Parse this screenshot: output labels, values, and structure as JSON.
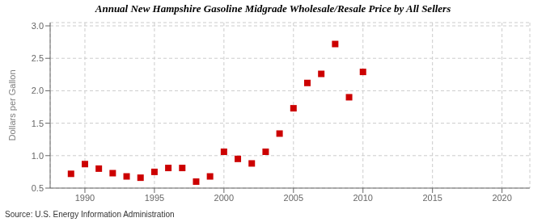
{
  "chart_data": {
    "type": "scatter",
    "title": "Annual New Hampshire Gasoline Midgrade Wholesale/Resale Price by All Sellers",
    "ylabel": "Dollars per Gallon",
    "annotations": [
      "Source: U.S. Energy Information Administration"
    ],
    "x": [
      1989,
      1990,
      1991,
      1992,
      1993,
      1994,
      1995,
      1996,
      1997,
      1998,
      1999,
      2000,
      2001,
      2002,
      2003,
      2004,
      2005,
      2006,
      2007,
      2008,
      2009,
      2010
    ],
    "values": [
      0.72,
      0.87,
      0.8,
      0.73,
      0.68,
      0.66,
      0.75,
      0.81,
      0.81,
      0.6,
      0.68,
      1.06,
      0.95,
      0.88,
      1.06,
      1.34,
      1.73,
      2.12,
      2.26,
      2.72,
      1.9,
      2.29
    ],
    "color": "#cc0000",
    "marker": "square",
    "xlim": [
      1987.5,
      2022
    ],
    "ylim": [
      0.5,
      3.05
    ],
    "xticks": [
      1990,
      1995,
      2000,
      2005,
      2010,
      2015,
      2020
    ],
    "yticks": [
      0.5,
      {
        "value": 1.0,
        "label": "1.0"
      },
      1.5,
      {
        "value": 2.0,
        "label": "2.0"
      },
      2.5,
      {
        "value": 3.0,
        "label": "3.0"
      }
    ],
    "grid": true
  }
}
